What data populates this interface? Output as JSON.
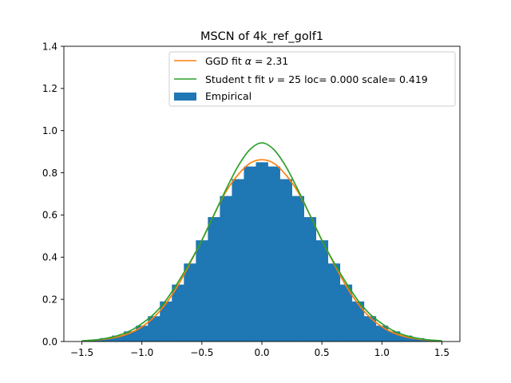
{
  "chart_data": {
    "type": "bar",
    "title": "MSCN of 4k_ref_golf1",
    "xlabel": "",
    "ylabel": "",
    "xlim": [
      -1.65,
      1.65
    ],
    "ylim": [
      0,
      1.4
    ],
    "xticks": [
      -1.5,
      -1.0,
      -0.5,
      0.0,
      0.5,
      1.0,
      1.5
    ],
    "xtick_labels": [
      "−1.5",
      "−1.0",
      "−0.5",
      "0.0",
      "0.5",
      "1.0",
      "1.5"
    ],
    "yticks": [
      0.0,
      0.2,
      0.4,
      0.6,
      0.8,
      1.0,
      1.2,
      1.4
    ],
    "ytick_labels": [
      "0.0",
      "0.2",
      "0.4",
      "0.6",
      "0.8",
      "1.0",
      "1.2",
      "1.4"
    ],
    "grid": false,
    "legend_placement": "top-right",
    "histogram": {
      "name": "Empirical",
      "color": "#1f77b4",
      "bin_range": [
        -1.5,
        1.5
      ],
      "x": [
        -1.5,
        -1.4,
        -1.3,
        -1.2,
        -1.1,
        -1.0,
        -0.9,
        -0.8,
        -0.7,
        -0.6,
        -0.5,
        -0.4,
        -0.3,
        -0.2,
        -0.1,
        0.0,
        0.1,
        0.2,
        0.3,
        0.4,
        0.5,
        0.6,
        0.7,
        0.8,
        0.9,
        1.0,
        1.1,
        1.2,
        1.3,
        1.4,
        1.5
      ],
      "density": [
        0.003,
        0.008,
        0.016,
        0.028,
        0.048,
        0.075,
        0.12,
        0.19,
        0.27,
        0.37,
        0.48,
        0.59,
        0.69,
        0.77,
        0.83,
        0.85,
        0.83,
        0.77,
        0.69,
        0.59,
        0.48,
        0.37,
        0.27,
        0.19,
        0.12,
        0.075,
        0.048,
        0.028,
        0.016,
        0.008,
        0.003
      ]
    },
    "series": [
      {
        "name": "GGD fit α = 2.31",
        "label_prefix": "GGD fit ",
        "label_symbol": "α",
        "label_suffix": " = 2.31",
        "color": "#ff7f0e",
        "x": [
          -1.5,
          -1.4,
          -1.3,
          -1.2,
          -1.1,
          -1.0,
          -0.9,
          -0.8,
          -0.7,
          -0.6,
          -0.5,
          -0.4,
          -0.3,
          -0.2,
          -0.1,
          0.0,
          0.1,
          0.2,
          0.3,
          0.4,
          0.5,
          0.6,
          0.7,
          0.8,
          0.9,
          1.0,
          1.1,
          1.2,
          1.3,
          1.4,
          1.5
        ],
        "y": [
          0.003,
          0.006,
          0.012,
          0.022,
          0.04,
          0.07,
          0.115,
          0.18,
          0.265,
          0.37,
          0.48,
          0.6,
          0.71,
          0.79,
          0.845,
          0.862,
          0.845,
          0.79,
          0.71,
          0.6,
          0.48,
          0.37,
          0.265,
          0.18,
          0.115,
          0.07,
          0.04,
          0.022,
          0.012,
          0.006,
          0.003
        ]
      },
      {
        "name": "Student t fit ν = 25 loc= 0.000 scale= 0.419",
        "label_prefix": "Student t fit ",
        "label_symbol": "ν",
        "label_suffix": " = 25 loc= 0.000 scale= 0.419",
        "color": "#2ca02c",
        "x": [
          -1.5,
          -1.4,
          -1.3,
          -1.2,
          -1.1,
          -1.0,
          -0.9,
          -0.8,
          -0.7,
          -0.6,
          -0.5,
          -0.4,
          -0.3,
          -0.2,
          -0.1,
          0.0,
          0.1,
          0.2,
          0.3,
          0.4,
          0.5,
          0.6,
          0.7,
          0.8,
          0.9,
          1.0,
          1.1,
          1.2,
          1.3,
          1.4,
          1.5
        ],
        "y": [
          0.003,
          0.007,
          0.015,
          0.028,
          0.05,
          0.085,
          0.13,
          0.195,
          0.28,
          0.375,
          0.48,
          0.6,
          0.72,
          0.83,
          0.91,
          0.942,
          0.91,
          0.83,
          0.72,
          0.6,
          0.48,
          0.375,
          0.28,
          0.195,
          0.13,
          0.085,
          0.05,
          0.028,
          0.015,
          0.007,
          0.003
        ]
      }
    ],
    "legend": {
      "items": [
        "GGD fit",
        "Student t fit",
        "Empirical"
      ],
      "empirical_label": "Empirical"
    }
  }
}
